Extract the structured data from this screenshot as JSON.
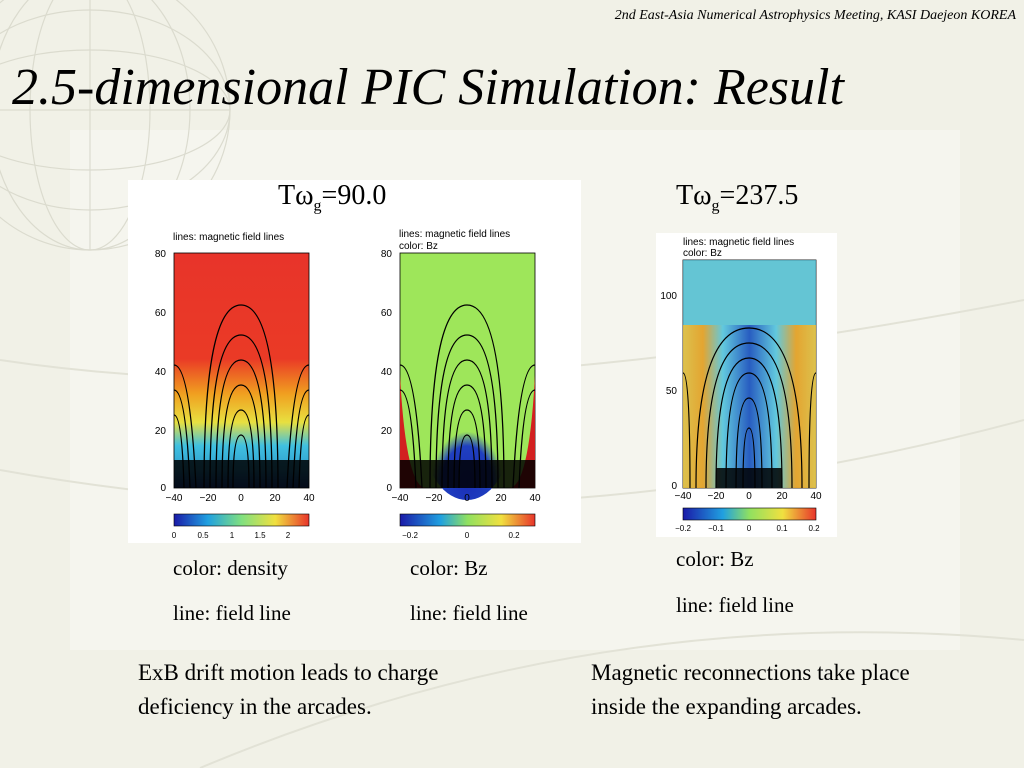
{
  "header": {
    "conference": "2nd East-Asia Numerical Astrophysics Meeting, KASI Daejeon KOREA"
  },
  "title": "2.5-dimensional PIC Simulation: Result",
  "panels": {
    "left_time": {
      "prefix": "Tω",
      "sub": "g",
      "value": "=90.0"
    },
    "right_time": {
      "prefix": "Tω",
      "sub": "g",
      "value": "=237.5"
    }
  },
  "plots": [
    {
      "label1": "lines: magnetic field lines",
      "label2": "",
      "yticks": [
        "80",
        "60",
        "40",
        "20",
        "0"
      ],
      "xticks": [
        "−40",
        "−20",
        "0",
        "20",
        "40"
      ],
      "cbar_ticks": [
        "0",
        "0.5",
        "1",
        "1.5",
        "2"
      ]
    },
    {
      "label1": "lines: magnetic field lines",
      "label2": "color: Bz",
      "yticks": [
        "80",
        "60",
        "40",
        "20",
        "0"
      ],
      "xticks": [
        "−40",
        "−20",
        "0",
        "20",
        "40"
      ],
      "cbar_ticks": [
        "−0.2",
        "0",
        "0.2"
      ]
    },
    {
      "label1": "lines: magnetic field lines",
      "label2": "color: Bz",
      "yticks": [
        "100",
        "50",
        "0"
      ],
      "xticks": [
        "−40",
        "−20",
        "0",
        "20",
        "40"
      ],
      "cbar_ticks": [
        "−0.2",
        "−0.1",
        "0",
        "0.1",
        "0.2"
      ]
    }
  ],
  "captions": {
    "c1_color": "color: density",
    "c1_line": "line: field line",
    "c2_color": "color: Bz",
    "c2_line": "line: field line",
    "c3_color": "color: Bz",
    "c3_line": "line: field line"
  },
  "paragraphs": {
    "left": [
      "ExB drift motion leads to charge",
      "deficiency in the arcades."
    ],
    "right": [
      "Magnetic reconnections take place",
      "inside the expanding arcades."
    ]
  },
  "colors": {
    "background": "#f2f2e8",
    "accent_red": "#e8342a",
    "accent_green": "#9ee65a",
    "accent_blue": "#1a2fb8"
  }
}
